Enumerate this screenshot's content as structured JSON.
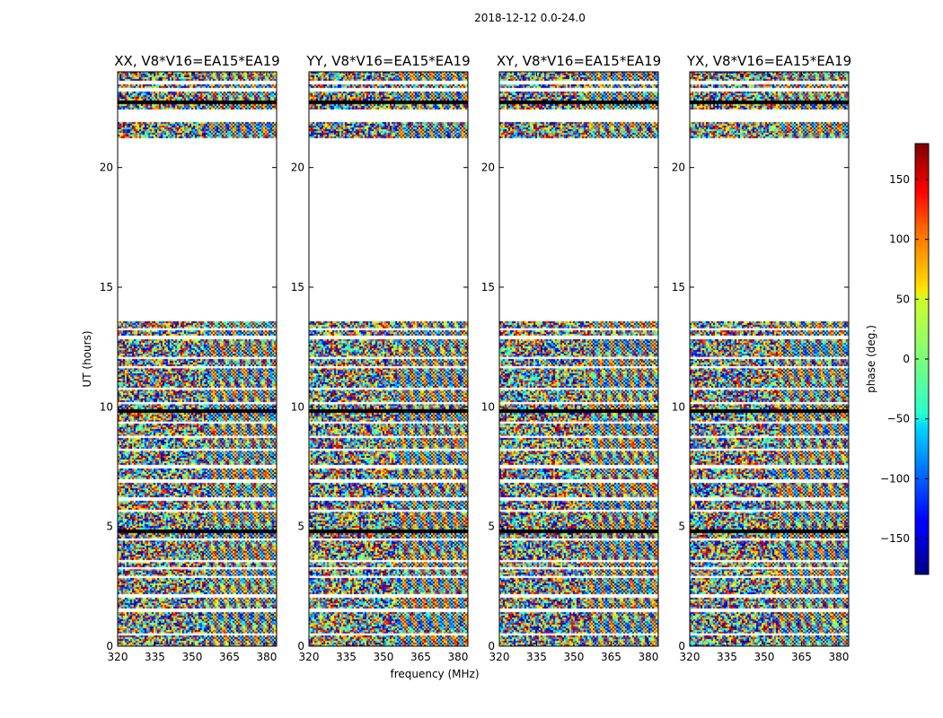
{
  "chart_data": {
    "type": "heatmap",
    "suptitle": "2018-12-12 0.0-24.0",
    "panels": [
      {
        "title": "XX, V8*V16=EA15*EA19",
        "pol": "XX"
      },
      {
        "title": "YY, V8*V16=EA15*EA19",
        "pol": "YY"
      },
      {
        "title": "XY, V8*V16=EA15*EA19",
        "pol": "XY"
      },
      {
        "title": "YX, V8*V16=EA15*EA19",
        "pol": "YX"
      }
    ],
    "xlabel": "frequency (MHz)",
    "ylabel": "UT (hours)",
    "x_ticks": [
      320,
      335,
      350,
      365,
      380
    ],
    "y_ticks": [
      0,
      5,
      10,
      15,
      20
    ],
    "xlim": [
      320,
      384
    ],
    "ylim": [
      0,
      24
    ],
    "colorbar": {
      "label": "phase (deg.)",
      "ticks": [
        150,
        100,
        50,
        0,
        -50,
        -100,
        -150
      ],
      "tick_labels": [
        "150",
        "100",
        "50",
        "0",
        "−50",
        "−100",
        "−150"
      ],
      "range": [
        -180,
        180
      ],
      "colormap": "jet"
    },
    "data_blocks_ut": [
      [
        0.0,
        13.6
      ],
      [
        21.2,
        21.9
      ],
      [
        22.4,
        24.0
      ]
    ],
    "empty_range_ut": [
      13.6,
      21.2
    ],
    "flagged_rows_ut": [
      0.5,
      1.5,
      2.1,
      2.9,
      3.25,
      3.55,
      4.45,
      5.65,
      6.15,
      6.9,
      7.5,
      8.2,
      8.75,
      9.35,
      10.15,
      10.75,
      11.65,
      12.05,
      12.9,
      13.25,
      22.05,
      23.25,
      23.55
    ],
    "dark_rows_ut": [
      4.8,
      9.85,
      22.75
    ]
  }
}
